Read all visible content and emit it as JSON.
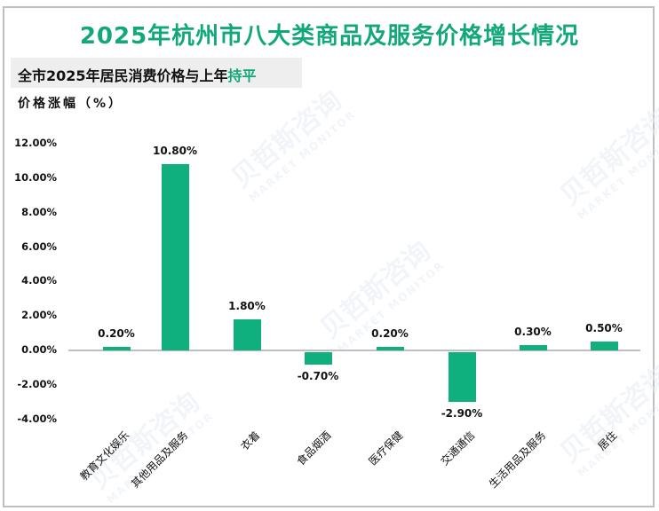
{
  "header": {
    "title": "2025年杭州市八大类商品及服务价格增长情况",
    "subtitle_prefix": "全市2025年居民消费价格与上年",
    "subtitle_highlight": "持平",
    "y_axis_label": "价格涨幅（%）"
  },
  "watermark": {
    "cn": "贝哲斯咨询",
    "en": "MARKET MONITOR"
  },
  "colors": {
    "accent": "#12a87a",
    "bar": "#10b07e",
    "axis": "#bfbfbf",
    "subtitle_bg": "#eeeeee"
  },
  "y_ticks": [
    "12.00%",
    "10.00%",
    "8.00%",
    "6.00%",
    "4.00%",
    "2.00%",
    "0.00%",
    "-2.00%",
    "-4.00%"
  ],
  "bars": [
    {
      "category": "教育文化娱乐",
      "label": "0.20%"
    },
    {
      "category": "其他用品及服务",
      "label": "10.80%"
    },
    {
      "category": "衣着",
      "label": "1.80%"
    },
    {
      "category": "食品烟酒",
      "label": "-0.70%"
    },
    {
      "category": "医疗保健",
      "label": "0.20%"
    },
    {
      "category": "交通通信",
      "label": "-2.90%"
    },
    {
      "category": "生活用品及服务",
      "label": "0.30%"
    },
    {
      "category": "居住",
      "label": "0.50%"
    }
  ],
  "chart_data": {
    "type": "bar",
    "title": "2025年杭州市八大类商品及服务价格增长情况",
    "subtitle": "全市2025年居民消费价格与上年持平",
    "xlabel": "",
    "ylabel": "价格涨幅（%）",
    "categories": [
      "教育文化娱乐",
      "其他用品及服务",
      "衣着",
      "食品烟酒",
      "医疗保健",
      "交通通信",
      "生活用品及服务",
      "居住"
    ],
    "values": [
      0.2,
      10.8,
      1.8,
      -0.7,
      0.2,
      -2.9,
      0.3,
      0.5
    ],
    "value_labels": [
      "0.20%",
      "10.80%",
      "1.80%",
      "-0.70%",
      "0.20%",
      "-2.90%",
      "0.30%",
      "0.50%"
    ],
    "ylim": [
      -4,
      12
    ],
    "yticks": [
      12,
      10,
      8,
      6,
      4,
      2,
      0,
      -2,
      -4
    ],
    "grid": false,
    "legend": null
  }
}
